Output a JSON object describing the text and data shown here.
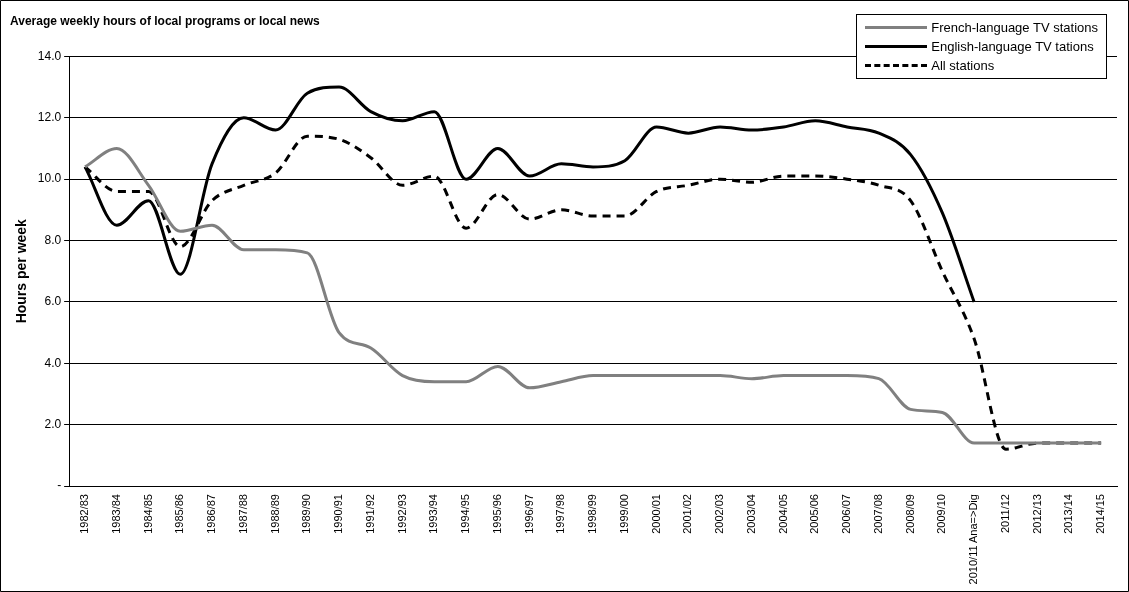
{
  "chart_data": {
    "type": "line",
    "title": "Average weekly hours of local programs or local news",
    "ylabel": "Hours per week",
    "categories": [
      "1982/83",
      "1983/84",
      "1984/85",
      "1985/86",
      "1986/87",
      "1987/88",
      "1988/89",
      "1989/90",
      "1990/91",
      "1991/92",
      "1992/93",
      "1993/94",
      "1994/95",
      "1995/96",
      "1996/97",
      "1997/98",
      "1998/99",
      "1999/00",
      "2000/01",
      "2001/02",
      "2002/03",
      "2003/04",
      "2004/05",
      "2005/06",
      "2006/07",
      "2007/08",
      "2008/09",
      "2009/10",
      "2010/11 Ana=>Dig",
      "2011/12",
      "2012/13",
      "2013/14",
      "2014/15"
    ],
    "series": [
      {
        "name": "French-language TV stations",
        "color": "#808080",
        "line_style": "solid",
        "values": [
          10.4,
          11.0,
          9.8,
          8.3,
          8.5,
          7.7,
          7.7,
          7.6,
          5.0,
          4.5,
          3.6,
          3.4,
          3.4,
          3.9,
          3.2,
          3.4,
          3.6,
          3.6,
          3.6,
          3.6,
          3.6,
          3.5,
          3.6,
          3.6,
          3.6,
          3.5,
          2.5,
          2.4,
          1.4,
          1.4,
          1.4,
          1.4,
          1.4
        ]
      },
      {
        "name": "English-language TV tations",
        "color": "#000000",
        "line_style": "solid",
        "values": [
          10.4,
          8.5,
          9.3,
          6.9,
          10.5,
          12.0,
          11.6,
          12.8,
          13.0,
          12.2,
          11.9,
          12.2,
          10.0,
          11.0,
          10.1,
          10.5,
          10.4,
          10.6,
          11.7,
          11.5,
          11.7,
          11.6,
          11.7,
          11.9,
          11.7,
          11.5,
          10.8,
          8.9,
          6.0,
          null,
          null,
          null,
          null
        ]
      },
      {
        "name": "All stations",
        "color": "#000000",
        "line_style": "dashed",
        "values": [
          10.4,
          9.6,
          9.6,
          7.8,
          9.3,
          9.8,
          10.2,
          11.4,
          11.3,
          10.7,
          9.8,
          10.1,
          8.4,
          9.5,
          8.7,
          9.0,
          8.8,
          8.8,
          9.6,
          9.8,
          10.0,
          9.9,
          10.1,
          10.1,
          10.0,
          9.8,
          9.3,
          7.0,
          4.8,
          1.2,
          1.4,
          1.4,
          1.4
        ]
      }
    ],
    "ylim": [
      0,
      14
    ],
    "yticks": [
      {
        "value": 0,
        "label": "-"
      },
      {
        "value": 2,
        "label": "2.0"
      },
      {
        "value": 4,
        "label": "4.0"
      },
      {
        "value": 6,
        "label": "6.0"
      },
      {
        "value": 8,
        "label": "8.0"
      },
      {
        "value": 10,
        "label": "10.0"
      },
      {
        "value": 12,
        "label": "12.0"
      },
      {
        "value": 14,
        "label": "14.0"
      }
    ],
    "grid": "y",
    "legend": "top right"
  }
}
